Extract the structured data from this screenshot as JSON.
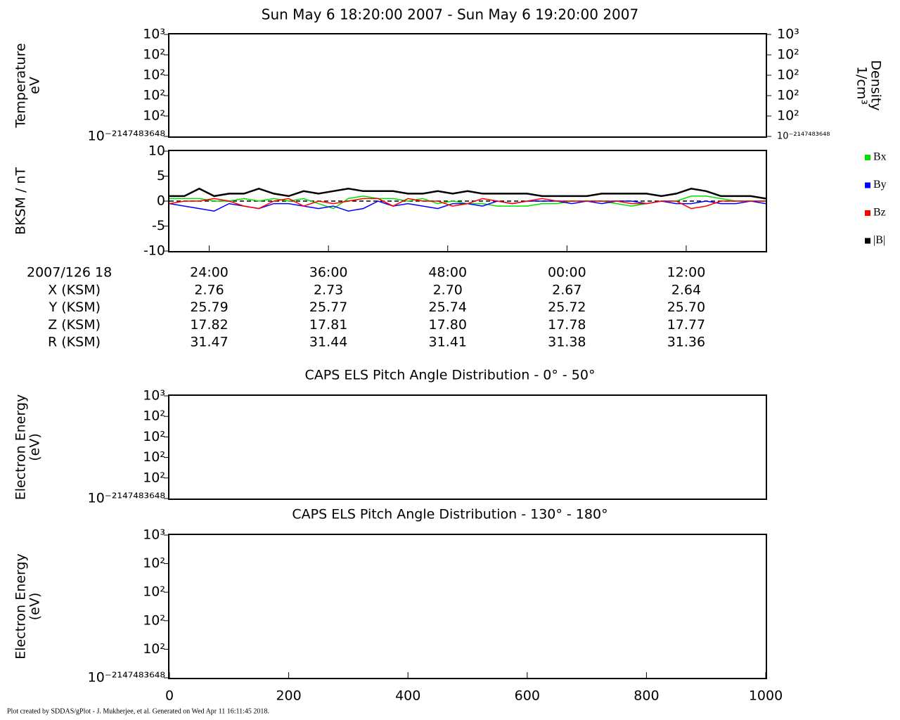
{
  "title": "Sun May 6 18:20:00 2007 - Sun May 6 19:20:00 2007",
  "footer": "Plot created by SDDAS/gPlot - J. Mukherjee, et al.  Generated on Wed Apr 11 16:11:45 2018.",
  "ephemeris": {
    "header": "2007/126 18",
    "rows": [
      {
        "label": "X (KSM)",
        "values": [
          "2.76",
          "2.73",
          "2.70",
          "2.67",
          "2.64"
        ]
      },
      {
        "label": "Y (KSM)",
        "values": [
          "25.79",
          "25.77",
          "25.74",
          "25.72",
          "25.70"
        ]
      },
      {
        "label": "Z (KSM)",
        "values": [
          "17.82",
          "17.81",
          "17.80",
          "17.78",
          "17.77"
        ]
      },
      {
        "label": "R (KSM)",
        "values": [
          "31.47",
          "31.44",
          "31.41",
          "31.38",
          "31.36"
        ]
      }
    ]
  },
  "chart_data": [
    {
      "type": "empty",
      "ylabel": [
        "Temperature",
        "eV"
      ],
      "y2label": [
        "Density",
        "1/cm³"
      ],
      "xlim": [
        20,
        80
      ],
      "ylim": [
        0,
        5
      ],
      "yticks": [
        {
          "value": 0,
          "label": "10⁻²¹⁴⁷⁴⁸³⁶⁴⁸"
        },
        {
          "value": 1,
          "label": "10²"
        },
        {
          "value": 2,
          "label": "10²"
        },
        {
          "value": 3,
          "label": "10²"
        },
        {
          "value": 4,
          "label": "10²"
        },
        {
          "value": 5,
          "label": "10³"
        }
      ],
      "y2lim": [
        0,
        5
      ],
      "y2ticks": [
        {
          "value": 0,
          "label": "10⁻²¹⁴⁷⁴⁸³⁶⁴⁸"
        },
        {
          "value": 1,
          "label": "10²"
        },
        {
          "value": 2,
          "label": "10²"
        },
        {
          "value": 3,
          "label": "10²"
        },
        {
          "value": 4,
          "label": "10²"
        },
        {
          "value": 5,
          "label": "10³"
        }
      ]
    },
    {
      "type": "line",
      "ylabel": [
        "BKSM / nT"
      ],
      "xlim": [
        20,
        80
      ],
      "ylim": [
        -10,
        10
      ],
      "yticks": [
        -10,
        -5,
        0,
        5,
        10
      ],
      "xticks": [
        {
          "value": 24,
          "label": "24:00"
        },
        {
          "value": 36,
          "label": "36:00"
        },
        {
          "value": 48,
          "label": "48:00"
        },
        {
          "value": 60,
          "label": "00:00"
        },
        {
          "value": 72,
          "label": "12:00"
        }
      ],
      "zero_line": true,
      "legend": "right",
      "x": [
        20,
        21.5,
        23,
        24.5,
        26,
        27.5,
        29,
        30.5,
        32,
        33.5,
        35,
        36.5,
        38,
        39.5,
        41,
        42.5,
        44,
        45.5,
        47,
        48.5,
        50,
        51.5,
        53,
        54.5,
        56,
        57.5,
        59,
        60.5,
        62,
        63.5,
        65,
        66.5,
        68,
        69.5,
        71,
        72.5,
        74,
        75.5,
        77,
        78.5,
        80
      ],
      "series": [
        {
          "name": "Bx",
          "color": "#00e000",
          "values": [
            0.5,
            0.5,
            0.5,
            0,
            0,
            0.5,
            0,
            0.5,
            0,
            0.5,
            -0.5,
            -1.5,
            0.5,
            1,
            0.5,
            0.5,
            0,
            0.5,
            -0.5,
            0,
            -0.5,
            -0.5,
            -1,
            -1,
            -1,
            -0.5,
            -0.5,
            0,
            0,
            0,
            -0.5,
            -1,
            -0.5,
            0,
            0,
            1,
            1,
            0.5,
            0,
            0,
            0
          ]
        },
        {
          "name": "By",
          "color": "#0000ff",
          "values": [
            -0.5,
            -1,
            -1.5,
            -2,
            -0.5,
            -1,
            -1.5,
            -0.5,
            -0.5,
            -1,
            -1.5,
            -1,
            -2,
            -1.5,
            0,
            -1,
            -0.5,
            -1,
            -1.5,
            -0.5,
            -0.5,
            -1,
            0,
            -0.5,
            0,
            0,
            0,
            -0.5,
            0,
            -0.5,
            0,
            0,
            -0.5,
            0,
            -0.5,
            -0.5,
            0,
            -0.5,
            -0.5,
            0,
            -0.5
          ]
        },
        {
          "name": "Bz",
          "color": "#ff0000",
          "values": [
            -0.5,
            0,
            0,
            0.5,
            0,
            -1,
            -1.5,
            0,
            0.5,
            -1,
            0,
            -0.5,
            0,
            0.5,
            0.5,
            -1,
            0.5,
            0,
            0,
            -1,
            -0.5,
            0.5,
            0,
            -0.5,
            0,
            0.5,
            0,
            0,
            0,
            0,
            0,
            -0.5,
            -0.5,
            0,
            0,
            -1.5,
            -1,
            0,
            0,
            0,
            0
          ]
        },
        {
          "name": "|B|",
          "color": "#000000",
          "values": [
            1,
            1,
            2.5,
            1,
            1.5,
            1.5,
            2.5,
            1.5,
            1,
            2,
            1.5,
            2,
            2.5,
            2,
            2,
            2,
            1.5,
            1.5,
            2,
            1.5,
            2,
            1.5,
            1.5,
            1.5,
            1.5,
            1,
            1,
            1,
            1,
            1.5,
            1.5,
            1.5,
            1.5,
            1,
            1.5,
            2.5,
            2,
            1,
            1,
            1,
            0.5
          ]
        }
      ]
    },
    {
      "type": "empty",
      "title": "CAPS ELS Pitch Angle Distribution - 0° - 50°",
      "ylabel": [
        "Electron Energy",
        "(eV)"
      ],
      "xlim": [
        0,
        1000
      ],
      "ylim": [
        0,
        5
      ],
      "yticks": [
        {
          "value": 0,
          "label": "10⁻²¹⁴⁷⁴⁸³⁶⁴⁸"
        },
        {
          "value": 1,
          "label": "10²"
        },
        {
          "value": 2,
          "label": "10²"
        },
        {
          "value": 3,
          "label": "10²"
        },
        {
          "value": 4,
          "label": "10²"
        },
        {
          "value": 5,
          "label": "10³"
        }
      ]
    },
    {
      "type": "empty",
      "title": "CAPS ELS Pitch Angle Distribution - 130° - 180°",
      "ylabel": [
        "Electron Energy",
        "(eV)"
      ],
      "xlim": [
        0,
        1000
      ],
      "ylim": [
        0,
        5
      ],
      "yticks": [
        {
          "value": 0,
          "label": "10⁻²¹⁴⁷⁴⁸³⁶⁴⁸"
        },
        {
          "value": 1,
          "label": "10²"
        },
        {
          "value": 2,
          "label": "10²"
        },
        {
          "value": 3,
          "label": "10²"
        },
        {
          "value": 4,
          "label": "10²"
        },
        {
          "value": 5,
          "label": "10³"
        }
      ],
      "xticks": [
        0,
        200,
        400,
        600,
        800,
        1000
      ]
    }
  ]
}
